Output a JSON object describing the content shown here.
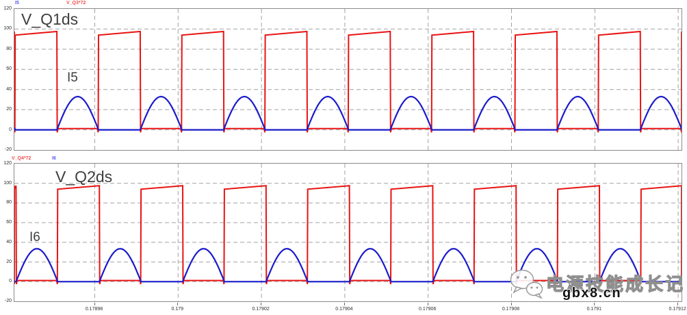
{
  "colors": {
    "red_trace": "#e81212",
    "blue_trace": "#1a1acc",
    "grid": "#a2a2a2",
    "border": "#8a8a8a",
    "label_text": "#3e3e3e",
    "tick_text": "#2b2b2b",
    "legend_blue": "#5a5aee",
    "legend_red": "#f05050"
  },
  "x_axis": {
    "unit": "s",
    "t_min": 0.1789607,
    "t_max": 0.1791208,
    "tick_times": [
      0.17898,
      0.179,
      0.17902,
      0.17904,
      0.17906,
      0.17908,
      0.1791,
      0.17912
    ],
    "tick_labels": [
      "0.17898",
      "0.179",
      "0.17902",
      "0.17904",
      "0.17906",
      "0.17908",
      "0.1791",
      "0.17912"
    ]
  },
  "chart_data": [
    {
      "type": "line",
      "panel": "top",
      "title": "V_Q1ds",
      "inline_label": "I5",
      "ylim": [
        -20,
        120
      ],
      "yticks": [
        120,
        100,
        80,
        60,
        40,
        20,
        0,
        -20
      ],
      "grid": "dashed",
      "legend": [
        {
          "label": "I5",
          "color": "#5a5aee"
        },
        {
          "label": "V_Q3*72",
          "color": "#f05050"
        }
      ],
      "series": [
        {
          "name": "V_Q3*72",
          "role": "drain-source-voltage",
          "color": "#e81212",
          "shape": "square",
          "period_s": 2e-05,
          "high_s": 1e-05,
          "first_rise_t": 0.1789609,
          "level_low": 1.2,
          "level_high_start": 94,
          "level_high_end": 97.6,
          "edge_dip": -2.5
        },
        {
          "name": "I5",
          "role": "resonant-current",
          "color": "#1a1acc",
          "shape": "half_sine",
          "base": 0,
          "amplitude": 33
        }
      ]
    },
    {
      "type": "line",
      "panel": "bottom",
      "title": "V_Q2ds",
      "inline_label": "I6",
      "ylim": [
        -20,
        120
      ],
      "yticks": [
        120,
        100,
        80,
        60,
        40,
        20,
        0,
        -20
      ],
      "grid": "dashed",
      "legend": [
        {
          "label": "V_Q4*72",
          "color": "#f05050"
        },
        {
          "label": "I6",
          "color": "#5a5aee"
        }
      ],
      "series": [
        {
          "name": "V_Q4*72",
          "role": "drain-source-voltage",
          "color": "#e81212",
          "shape": "square",
          "period_s": 2e-05,
          "high_s": 1e-05,
          "first_rise_t": 0.1789711,
          "level_low": 1.2,
          "level_high_start": 94,
          "level_high_end": 97.6,
          "edge_dip": -2.5
        },
        {
          "name": "I6",
          "role": "resonant-current",
          "color": "#1a1acc",
          "shape": "half_sine",
          "base": 0,
          "amplitude": 33.5
        }
      ]
    }
  ],
  "watermark": {
    "icon": "wechat-icon",
    "brand": "电源技能成长记",
    "site": "gbx8.cn"
  }
}
